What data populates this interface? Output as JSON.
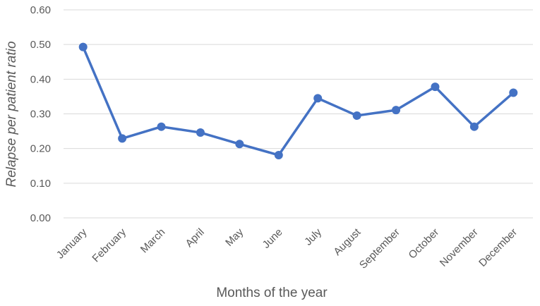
{
  "chart_data": {
    "type": "line",
    "title": "",
    "xlabel": "Months of the year",
    "ylabel": "Relapse per patient ratio",
    "ylim": [
      0,
      0.6
    ],
    "yticks": [
      "0.00",
      "0.10",
      "0.20",
      "0.30",
      "0.40",
      "0.50",
      "0.60"
    ],
    "grid": true,
    "legend": "none",
    "categories": [
      "January",
      "February",
      "March",
      "April",
      "May",
      "June",
      "July",
      "August",
      "September",
      "October",
      "November",
      "December"
    ],
    "series": [
      {
        "color": "#4472C4",
        "values": [
          0.493,
          0.229,
          0.263,
          0.246,
          0.213,
          0.181,
          0.345,
          0.295,
          0.311,
          0.378,
          0.263,
          0.361
        ]
      }
    ]
  }
}
